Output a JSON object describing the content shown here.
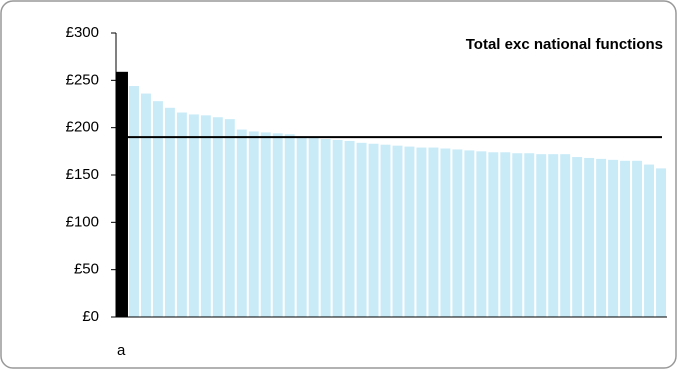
{
  "chart_data": {
    "type": "bar",
    "title": "Total exc national functions",
    "categories": [
      "a",
      null,
      null,
      null,
      null,
      null,
      null,
      null,
      null,
      null,
      null,
      null,
      null,
      null,
      null,
      null,
      null,
      null,
      null,
      null,
      null,
      null,
      null,
      null,
      null,
      null,
      null,
      null,
      null,
      null,
      null,
      null,
      null,
      null,
      null,
      null,
      null,
      null,
      null,
      null,
      null,
      null,
      null,
      null,
      null,
      null
    ],
    "values": [
      259,
      244,
      236,
      228,
      221,
      216,
      214,
      213,
      211,
      209,
      198,
      196,
      195,
      194,
      193,
      190,
      189,
      188,
      187,
      186,
      184,
      183,
      182,
      181,
      180,
      179,
      179,
      178,
      177,
      176,
      175,
      174,
      174,
      173,
      173,
      172,
      172,
      172,
      169,
      168,
      167,
      166,
      165,
      165,
      161,
      157
    ],
    "color": "#c9ebf7",
    "highlight_color": "#000000",
    "reference_line": 190,
    "reference_color": "#000000",
    "ylim": [
      0,
      300
    ],
    "yticks": [
      {
        "value": 0,
        "label": "£0"
      },
      {
        "value": 50,
        "label": "£50"
      },
      {
        "value": 100,
        "label": "£100"
      },
      {
        "value": 150,
        "label": "£150"
      },
      {
        "value": 200,
        "label": "£200"
      },
      {
        "value": 250,
        "label": "£250"
      },
      {
        "value": 300,
        "label": "£300"
      }
    ]
  }
}
